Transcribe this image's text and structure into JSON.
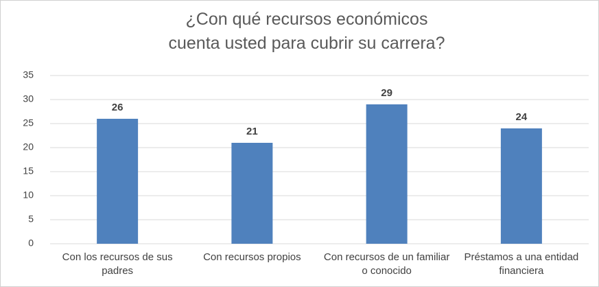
{
  "chart_data": {
    "type": "bar",
    "title": "¿Con qué recursos económicos cuenta usted para cubrir su carrera?",
    "categories": [
      "Con los recursos de sus padres",
      "Con recursos propios",
      "Con recursos de un familiar o conocido",
      "Préstamos a una entidad financiera"
    ],
    "values": [
      26,
      21,
      29,
      24
    ],
    "color": "#4f81bd",
    "ylim": [
      0,
      35
    ],
    "yticks": [
      0,
      5,
      10,
      15,
      20,
      25,
      30,
      35
    ],
    "grid": true
  }
}
